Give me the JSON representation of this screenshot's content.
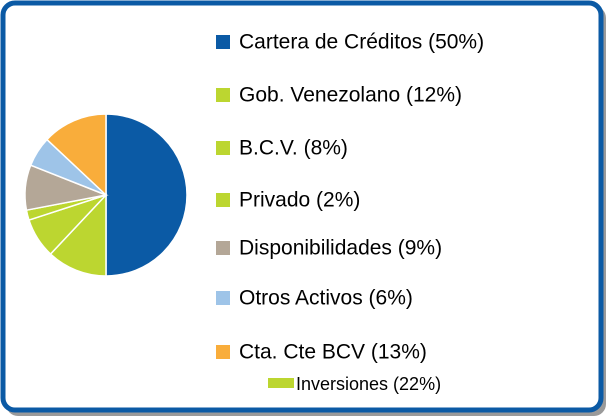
{
  "chart_data": {
    "type": "pie",
    "categories": [
      "Cartera de Créditos (50%)",
      "Gob. Venezolano (12%)",
      "B.C.V. (8%)",
      "Privado (2%)",
      "Disponibilidades (9%)",
      "Otros Activos (6%)",
      "Cta. Cte BCV (13%)"
    ],
    "values": [
      50,
      12,
      8,
      2,
      9,
      6,
      13
    ],
    "colors": [
      "#0b5aa5",
      "#bcd630",
      "#bcd630",
      "#bcd630",
      "#b4a797",
      "#9ec4e8",
      "#f9ad3b"
    ],
    "group_label": "Inversiones (22%)",
    "group_color": "#bcd630"
  }
}
